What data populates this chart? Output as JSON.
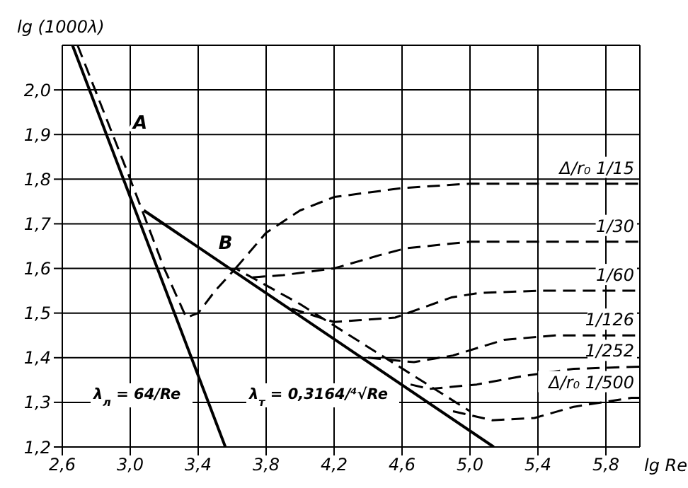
{
  "chart_data": {
    "type": "line",
    "ylabel": "lg (1000λ)",
    "xlabel": "lg Re",
    "xlim": [
      2.6,
      6.0
    ],
    "ylim": [
      1.2,
      2.1
    ],
    "xticks": [
      {
        "value": 2.6,
        "label": "2,6"
      },
      {
        "value": 3.0,
        "label": "3,0"
      },
      {
        "value": 3.4,
        "label": "3,4"
      },
      {
        "value": 3.8,
        "label": "3,8"
      },
      {
        "value": 4.2,
        "label": "4,2"
      },
      {
        "value": 4.6,
        "label": "4,6"
      },
      {
        "value": 5.0,
        "label": "5,0"
      },
      {
        "value": 5.4,
        "label": "5,4"
      },
      {
        "value": 5.8,
        "label": "5,8"
      }
    ],
    "yticks": [
      {
        "value": 1.2,
        "label": "1,2"
      },
      {
        "value": 1.3,
        "label": "1,3"
      },
      {
        "value": 1.4,
        "label": "1,4"
      },
      {
        "value": 1.5,
        "label": "1,5"
      },
      {
        "value": 1.6,
        "label": "1,6"
      },
      {
        "value": 1.7,
        "label": "1,7"
      },
      {
        "value": 1.8,
        "label": "1,8"
      },
      {
        "value": 1.9,
        "label": "1,9"
      },
      {
        "value": 2.0,
        "label": "2,0"
      }
    ],
    "grid": true,
    "legend": false,
    "marker": "none",
    "series": [
      {
        "color": "#000000",
        "line_style": "solid",
        "x": [
          2.66,
          3.56
        ],
        "values": [
          2.1,
          1.2
        ]
      },
      {
        "color": "#000000",
        "line_style": "solid",
        "x": [
          3.08,
          5.14
        ],
        "values": [
          1.73,
          1.2
        ]
      },
      {
        "color": "#000000",
        "line_style": "dashed",
        "x": [
          2.69,
          3.0,
          3.2,
          3.33,
          3.4,
          3.5,
          3.62,
          4.0,
          4.5,
          5.0
        ],
        "values": [
          2.1,
          1.8,
          1.6,
          1.49,
          1.5,
          1.55,
          1.6,
          1.52,
          1.4,
          1.28
        ]
      },
      {
        "name": "Δ/r₀  1/15",
        "color": "#000000",
        "line_style": "dashed",
        "x": [
          3.62,
          3.8,
          4.0,
          4.2,
          4.6,
          5.0,
          6.0
        ],
        "values": [
          1.6,
          1.68,
          1.73,
          1.76,
          1.78,
          1.79,
          1.79
        ]
      },
      {
        "name": "1/30",
        "color": "#000000",
        "line_style": "dashed",
        "x": [
          3.72,
          3.9,
          4.2,
          4.47,
          4.62,
          5.0,
          6.0
        ],
        "values": [
          1.58,
          1.585,
          1.6,
          1.63,
          1.645,
          1.66,
          1.66
        ]
      },
      {
        "name": "1/60",
        "color": "#000000",
        "line_style": "dashed",
        "x": [
          3.95,
          4.2,
          4.56,
          4.89,
          5.05,
          5.4,
          6.0
        ],
        "values": [
          1.51,
          1.48,
          1.49,
          1.535,
          1.545,
          1.55,
          1.55
        ]
      },
      {
        "name": "1/126",
        "color": "#000000",
        "line_style": "dashed",
        "x": [
          4.4,
          4.67,
          4.9,
          5.2,
          5.5,
          6.0
        ],
        "values": [
          1.4,
          1.39,
          1.405,
          1.44,
          1.45,
          1.45
        ]
      },
      {
        "name": "1/252",
        "color": "#000000",
        "line_style": "dashed",
        "x": [
          4.65,
          4.76,
          5.04,
          5.33,
          5.61,
          6.0
        ],
        "values": [
          1.34,
          1.33,
          1.34,
          1.36,
          1.375,
          1.38
        ]
      },
      {
        "name": "Δ/r₀  1/500",
        "color": "#000000",
        "line_style": "dashed",
        "x": [
          4.9,
          5.13,
          5.38,
          5.61,
          5.95,
          6.0
        ],
        "values": [
          1.28,
          1.26,
          1.265,
          1.29,
          1.31,
          1.31
        ]
      }
    ],
    "annotations": [
      {
        "text": "A",
        "x": 2.9,
        "y": 1.9
      },
      {
        "text": "B",
        "x": 3.62,
        "y": 1.6
      },
      "λ$_{л}$ = 64/Re",
      "λ$_{т}$ = 0,3164/⁴√Re"
    ]
  }
}
